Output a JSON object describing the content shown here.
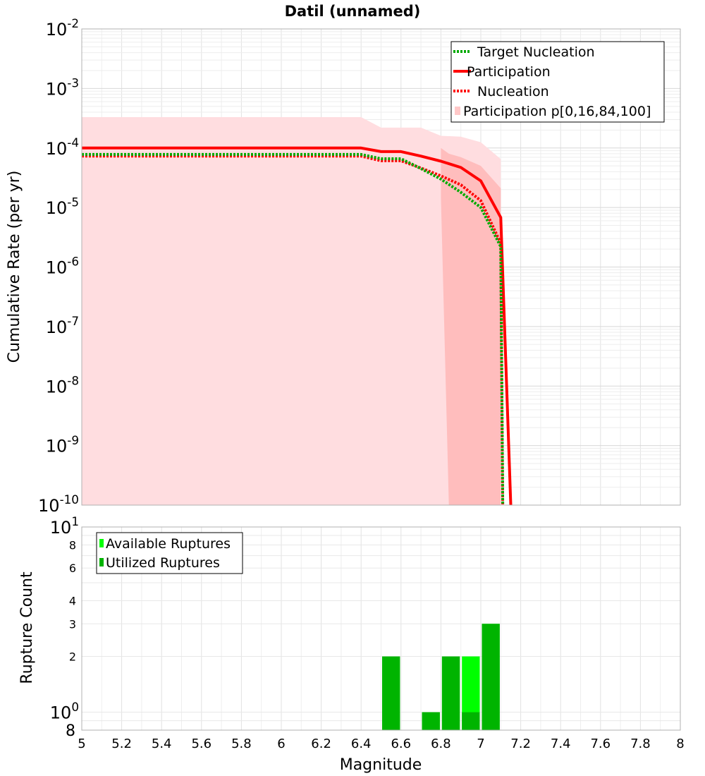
{
  "chart_data": [
    {
      "type": "line",
      "title": "Datil (unnamed)",
      "xlabel": "",
      "ylabel": "Cumulative Rate (per yr)",
      "yscale": "log",
      "xlim": [
        5,
        8
      ],
      "ylim": [
        1e-10,
        0.01
      ],
      "grid": true,
      "legend_position": "top-right",
      "y_tick_labels": [
        {
          "base": "10",
          "exp": "-2"
        },
        {
          "base": "10",
          "exp": "-3"
        },
        {
          "base": "10",
          "exp": "-4"
        },
        {
          "base": "10",
          "exp": "-5"
        },
        {
          "base": "10",
          "exp": "-6"
        },
        {
          "base": "10",
          "exp": "-7"
        },
        {
          "base": "10",
          "exp": "-8"
        },
        {
          "base": "10",
          "exp": "-9"
        },
        {
          "base": "10",
          "exp": "-10"
        }
      ],
      "legend": [
        {
          "label": "Target Nucleation",
          "color": "#00aa00",
          "style": "dotted"
        },
        {
          "label": "Participation",
          "color": "#ff0000",
          "style": "solid"
        },
        {
          "label": "Nucleation",
          "color": "#ff0000",
          "style": "dotted"
        },
        {
          "label": "Participation p[0,16,84,100]",
          "color": "#ffc8c8",
          "style": "band"
        }
      ],
      "series": [
        {
          "name": "Participation",
          "color": "#ff0000",
          "style": "solid",
          "x": [
            5.0,
            6.4,
            6.5,
            6.6,
            6.7,
            6.8,
            6.9,
            7.0,
            7.1,
            7.15
          ],
          "values": [
            0.0001,
            0.0001,
            8.7e-05,
            8.7e-05,
            7.3e-05,
            6e-05,
            4.7e-05,
            2.8e-05,
            6.8e-06,
            1e-10
          ]
        },
        {
          "name": "Nucleation",
          "color": "#ff0000",
          "style": "dotted",
          "x": [
            5.0,
            6.4,
            6.5,
            6.6,
            6.7,
            6.8,
            6.9,
            7.0,
            7.1,
            7.11
          ],
          "values": [
            7.3e-05,
            7.3e-05,
            6.1e-05,
            6.1e-05,
            4.6e-05,
            3.4e-05,
            2.4e-05,
            1.3e-05,
            2.5e-06,
            1e-10
          ]
        },
        {
          "name": "Target Nucleation",
          "color": "#00aa00",
          "style": "dotted",
          "x": [
            5.0,
            6.4,
            6.5,
            6.6,
            6.7,
            6.8,
            6.9,
            7.0,
            7.1,
            7.11
          ],
          "values": [
            7.8e-05,
            7.8e-05,
            6.6e-05,
            6.6e-05,
            4.5e-05,
            3e-05,
            1.8e-05,
            1e-05,
            2.2e-06,
            1e-10
          ]
        }
      ],
      "bands": [
        {
          "name": "p0-p100",
          "x": [
            5.0,
            6.4,
            6.5,
            6.6,
            6.7,
            6.8,
            6.9,
            7.0,
            7.1
          ],
          "upper": [
            0.00033,
            0.00033,
            0.00022,
            0.00022,
            0.00022,
            0.00016,
            0.000155,
            0.000125,
            6.5e-05
          ],
          "lower": [
            1e-10,
            1e-10,
            1e-10,
            1e-10,
            1e-10,
            1e-10,
            1e-10,
            1e-10,
            1e-10
          ]
        },
        {
          "name": "p16-p84",
          "x": [
            6.8,
            6.84,
            6.9,
            7.0,
            7.1
          ],
          "upper": [
            0.0001,
            8e-05,
            7e-05,
            5e-05,
            2.1e-05
          ],
          "lower": [
            1.5e-05,
            1e-10,
            1e-10,
            1e-10,
            1e-10
          ]
        }
      ]
    },
    {
      "type": "bar",
      "title": "",
      "xlabel": "Magnitude",
      "ylabel": "Rupture Count",
      "yscale": "log",
      "xlim": [
        5,
        8
      ],
      "ylim": [
        0.8,
        10
      ],
      "grid": true,
      "legend_position": "top-left",
      "bin_width": 0.1,
      "x_ticks": [
        "5",
        "5.2",
        "5.4",
        "5.6",
        "5.8",
        "6",
        "6.2",
        "6.4",
        "6.6",
        "6.8",
        "7",
        "7.2",
        "7.4",
        "7.6",
        "7.8",
        "8"
      ],
      "y_tick_labels": [
        {
          "value": 10,
          "base": "10",
          "exp": "1"
        },
        {
          "value": 8,
          "label": "8"
        },
        {
          "value": 6,
          "label": "6"
        },
        {
          "value": 4,
          "label": "4"
        },
        {
          "value": 3,
          "label": "3"
        },
        {
          "value": 2,
          "label": "2"
        },
        {
          "value": 1,
          "base": "10",
          "exp": "0"
        },
        {
          "value": 0.8,
          "label": "8"
        }
      ],
      "legend": [
        {
          "label": "Available Ruptures",
          "color": "#00ff00"
        },
        {
          "label": "Utilized Ruptures",
          "color": "#00b400"
        }
      ],
      "series": [
        {
          "name": "Available Ruptures",
          "color": "#00ff00",
          "x": [
            6.55,
            6.75,
            6.85,
            6.95,
            7.05
          ],
          "values": [
            2,
            1,
            2,
            2,
            3
          ]
        },
        {
          "name": "Utilized Ruptures",
          "color": "#00b400",
          "x": [
            6.55,
            6.75,
            6.85,
            6.95,
            7.05
          ],
          "values": [
            2,
            1,
            2,
            1,
            3
          ]
        }
      ]
    }
  ]
}
